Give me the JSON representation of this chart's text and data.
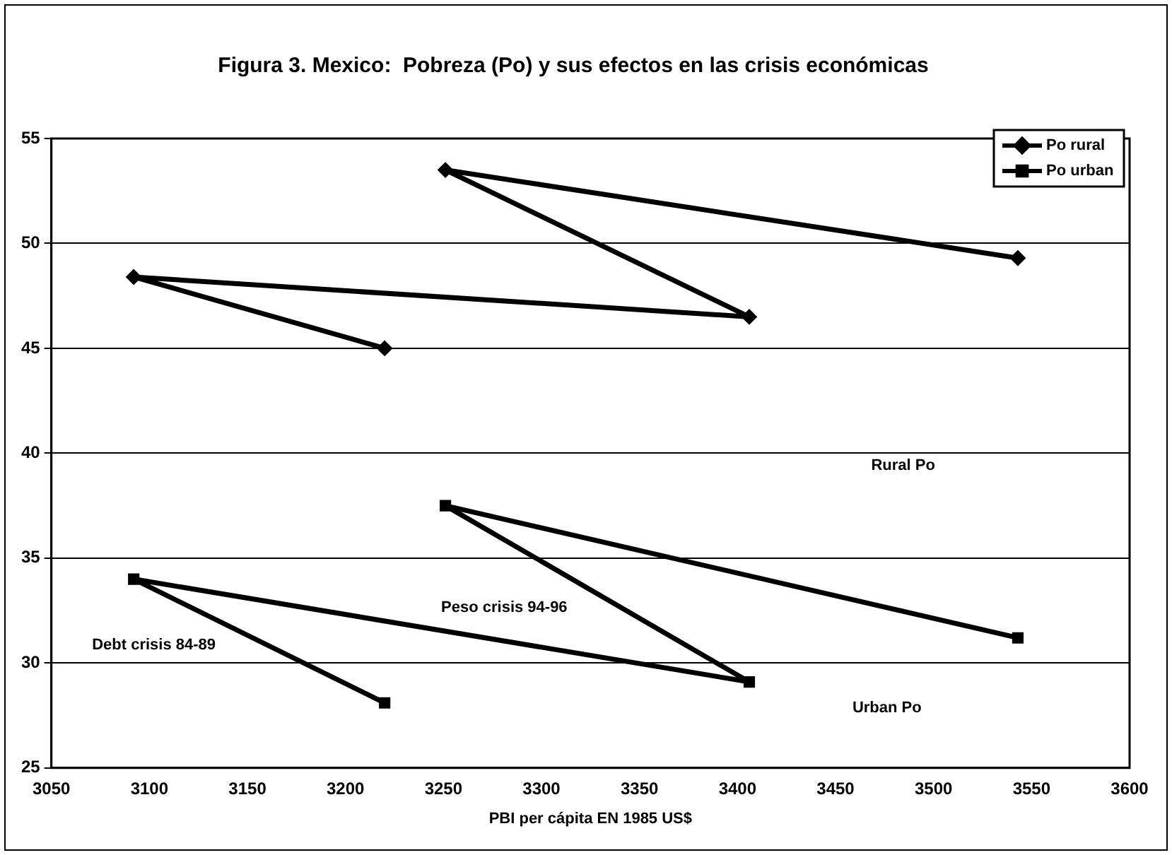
{
  "chart_data": {
    "type": "line",
    "title": "Figura 3. Mexico:  Pobreza (Po) y sus efectos en las crisis económicas",
    "xlabel": "PBI per cápita EN 1985 US$",
    "series": [
      {
        "name": "Po rural",
        "color": "#000000",
        "marker": "diamond",
        "x": [
          3220,
          3092,
          3406,
          3251,
          3543
        ],
        "values": [
          45.0,
          48.4,
          46.5,
          53.5,
          49.3
        ]
      },
      {
        "name": "Po urban",
        "color": "#000000",
        "marker": "square",
        "x": [
          3220,
          3092,
          3406,
          3251,
          3543
        ],
        "values": [
          28.1,
          34.0,
          29.1,
          37.5,
          31.2
        ]
      }
    ],
    "xlim": [
      3050,
      3600
    ],
    "xticks": [
      3050,
      3100,
      3150,
      3200,
      3250,
      3300,
      3350,
      3400,
      3450,
      3500,
      3550,
      3600
    ],
    "ylim": [
      25,
      55
    ],
    "yticks": [
      25,
      30,
      35,
      40,
      45,
      50,
      55
    ],
    "grid": "y",
    "legend": "top right",
    "line_style": "solid",
    "annotations": [
      "Rural Po",
      "Urban Po",
      "Peso crisis 94-96",
      "Debt crisis 84-89"
    ]
  }
}
